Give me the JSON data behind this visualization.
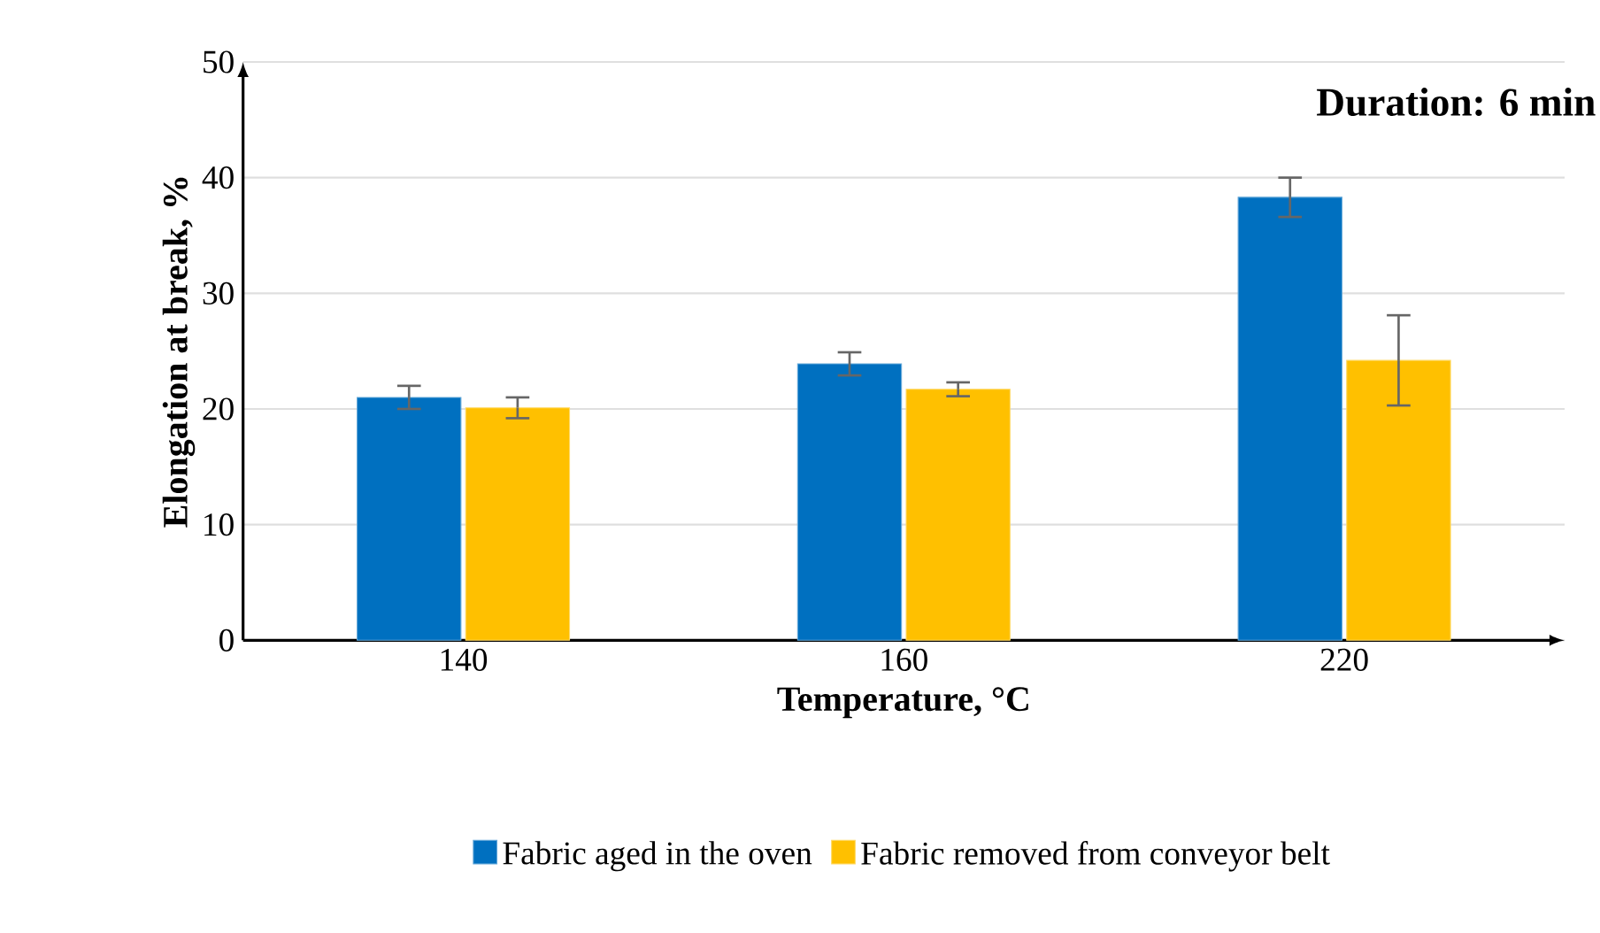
{
  "chart_data": {
    "type": "bar",
    "xlabel": "Temperature, °C",
    "ylabel": "Elongation at break, %",
    "annotations": [
      "Duration: 6 min"
    ],
    "categories": [
      "140",
      "160",
      "220"
    ],
    "series": [
      {
        "name": "Fabric aged in the oven",
        "color": "#0070c0",
        "values": [
          21,
          23.9,
          38.3
        ],
        "errors": [
          1,
          1,
          1.7
        ]
      },
      {
        "name": "Fabric removed from conveyor belt",
        "color": "#ffc000",
        "values": [
          20.1,
          21.7,
          24.2
        ],
        "errors": [
          0.9,
          0.6,
          3.9
        ]
      }
    ],
    "ylim": [
      0,
      50
    ],
    "yticks": [
      0,
      10,
      20,
      30,
      40,
      50
    ],
    "grid": "y",
    "legend": "bottom"
  }
}
